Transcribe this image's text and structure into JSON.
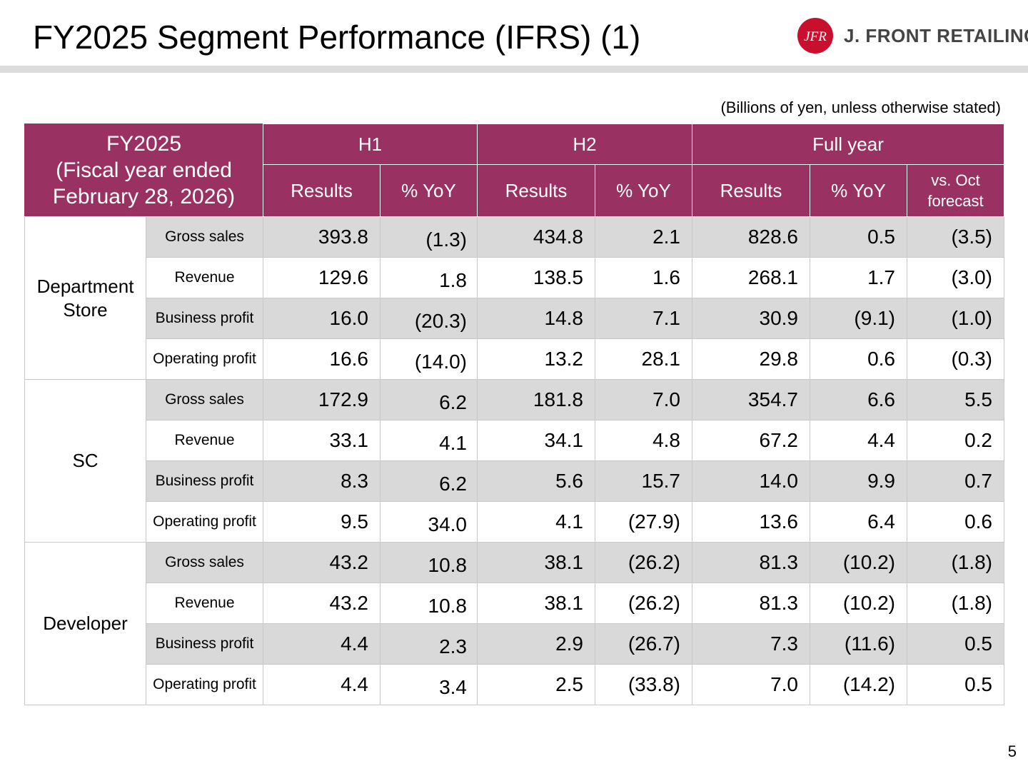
{
  "header": {
    "title": "FY2025 Segment Performance (IFRS) (1)",
    "logo_mark": "JFR",
    "logo_text": "J. FRONT RETAILING"
  },
  "unit_note": "(Billions of yen, unless otherwise stated)",
  "page_number": "5",
  "colors": {
    "header_bg": "#993162",
    "shade_bg": "#d9d9d9",
    "logo_red": "#c8102e"
  },
  "table": {
    "corner": [
      "FY2025",
      "(Fiscal year ended",
      "February 28, 2026)"
    ],
    "groups": [
      "H1",
      "H2",
      "Full year"
    ],
    "subheaders": [
      "Results",
      "% YoY",
      "Results",
      "% YoY",
      "Results",
      "% YoY",
      "vs. Oct",
      "forecast"
    ],
    "segments": [
      {
        "name": [
          "Department",
          "Store"
        ],
        "rows": [
          {
            "item": "Gross sales",
            "h1_results": "393.8",
            "h1_yoy": "(1.3)",
            "h2_results": "434.8",
            "h2_yoy": "2.1",
            "fy_results": "828.6",
            "fy_yoy": "0.5",
            "fy_vs_oct": "(3.5)"
          },
          {
            "item": "Revenue",
            "h1_results": "129.6",
            "h1_yoy": "1.8",
            "h2_results": "138.5",
            "h2_yoy": "1.6",
            "fy_results": "268.1",
            "fy_yoy": "1.7",
            "fy_vs_oct": "(3.0)"
          },
          {
            "item": "Business profit",
            "h1_results": "16.0",
            "h1_yoy": "(20.3)",
            "h2_results": "14.8",
            "h2_yoy": "7.1",
            "fy_results": "30.9",
            "fy_yoy": "(9.1)",
            "fy_vs_oct": "(1.0)"
          },
          {
            "item": "Operating profit",
            "h1_results": "16.6",
            "h1_yoy": "(14.0)",
            "h2_results": "13.2",
            "h2_yoy": "28.1",
            "fy_results": "29.8",
            "fy_yoy": "0.6",
            "fy_vs_oct": "(0.3)"
          }
        ]
      },
      {
        "name": [
          "SC"
        ],
        "rows": [
          {
            "item": "Gross sales",
            "h1_results": "172.9",
            "h1_yoy": "6.2",
            "h2_results": "181.8",
            "h2_yoy": "7.0",
            "fy_results": "354.7",
            "fy_yoy": "6.6",
            "fy_vs_oct": "5.5"
          },
          {
            "item": "Revenue",
            "h1_results": "33.1",
            "h1_yoy": "4.1",
            "h2_results": "34.1",
            "h2_yoy": "4.8",
            "fy_results": "67.2",
            "fy_yoy": "4.4",
            "fy_vs_oct": "0.2"
          },
          {
            "item": "Business profit",
            "h1_results": "8.3",
            "h1_yoy": "6.2",
            "h2_results": "5.6",
            "h2_yoy": "15.7",
            "fy_results": "14.0",
            "fy_yoy": "9.9",
            "fy_vs_oct": "0.7"
          },
          {
            "item": "Operating profit",
            "h1_results": "9.5",
            "h1_yoy": "34.0",
            "h2_results": "4.1",
            "h2_yoy": "(27.9)",
            "fy_results": "13.6",
            "fy_yoy": "6.4",
            "fy_vs_oct": "0.6"
          }
        ]
      },
      {
        "name": [
          "Developer"
        ],
        "rows": [
          {
            "item": "Gross sales",
            "h1_results": "43.2",
            "h1_yoy": "10.8",
            "h2_results": "38.1",
            "h2_yoy": "(26.2)",
            "fy_results": "81.3",
            "fy_yoy": "(10.2)",
            "fy_vs_oct": "(1.8)"
          },
          {
            "item": "Revenue",
            "h1_results": "43.2",
            "h1_yoy": "10.8",
            "h2_results": "38.1",
            "h2_yoy": "(26.2)",
            "fy_results": "81.3",
            "fy_yoy": "(10.2)",
            "fy_vs_oct": "(1.8)"
          },
          {
            "item": "Business profit",
            "h1_results": "4.4",
            "h1_yoy": "2.3",
            "h2_results": "2.9",
            "h2_yoy": "(26.7)",
            "fy_results": "7.3",
            "fy_yoy": "(11.6)",
            "fy_vs_oct": "0.5"
          },
          {
            "item": "Operating profit",
            "h1_results": "4.4",
            "h1_yoy": "3.4",
            "h2_results": "2.5",
            "h2_yoy": "(33.8)",
            "fy_results": "7.0",
            "fy_yoy": "(14.2)",
            "fy_vs_oct": "0.5"
          }
        ]
      }
    ]
  }
}
